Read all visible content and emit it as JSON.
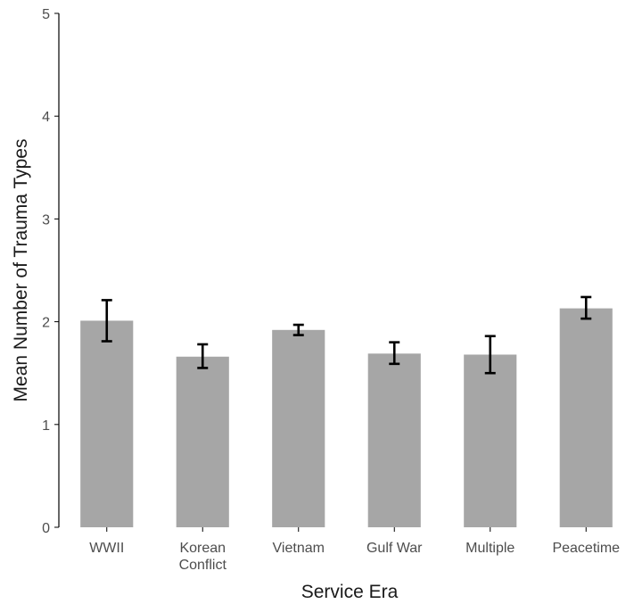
{
  "chart_data": {
    "type": "bar",
    "title": "",
    "xlabel": "Service Era",
    "ylabel": "Mean Number of Trauma Types",
    "ylim": [
      0,
      5
    ],
    "yticks": [
      0,
      1,
      2,
      3,
      4,
      5
    ],
    "grid": false,
    "legend": "none",
    "categories": [
      [
        "WWII"
      ],
      [
        "Korean",
        "Conflict"
      ],
      [
        "Vietnam"
      ],
      [
        "Gulf War"
      ],
      [
        "Multiple"
      ],
      [
        "Peacetime"
      ]
    ],
    "values": [
      2.01,
      1.66,
      1.92,
      1.69,
      1.68,
      2.13
    ],
    "error_low": [
      1.81,
      1.55,
      1.87,
      1.59,
      1.5,
      2.03
    ],
    "error_high": [
      2.21,
      1.78,
      1.97,
      1.8,
      1.86,
      2.24
    ],
    "colors": {
      "bar": "#a6a6a6",
      "error_bar": "#000000",
      "axis": "#000000"
    }
  }
}
